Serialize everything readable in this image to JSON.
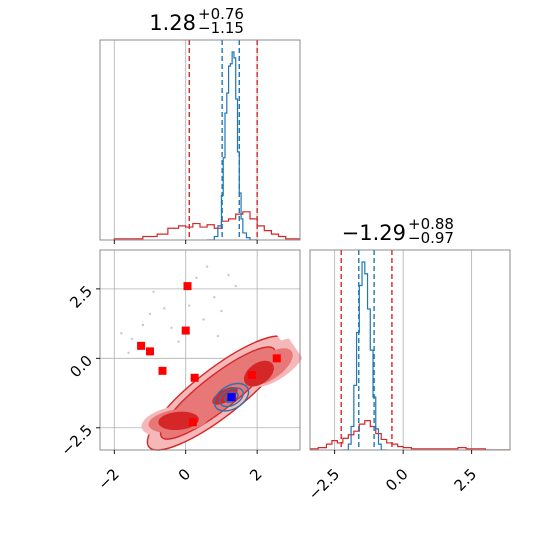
{
  "chart_data": {
    "type": "corner",
    "colors": {
      "broad": "#d62728",
      "narrow": "#1f77b4",
      "truth": "#0000ff",
      "samples": "#ff0000"
    },
    "param1": {
      "title": {
        "main": "1.28",
        "sup": "+0.76",
        "sub": "−1.15"
      },
      "xlim": [
        -2.4,
        3.2
      ],
      "ticks": [
        -2,
        0,
        2
      ],
      "tick_labels": [
        "−2",
        "0",
        "2"
      ],
      "broad_quantiles": [
        0.1,
        2.0
      ],
      "narrow_quantiles": [
        1.02,
        1.5
      ],
      "broad_hist": {
        "edges": [
          -2.0,
          -1.6,
          -1.2,
          -0.8,
          -0.5,
          -0.2,
          0.0,
          0.2,
          0.4,
          0.6,
          0.8,
          1.0,
          1.2,
          1.4,
          1.6,
          1.8,
          2.0,
          2.2,
          2.4,
          2.6,
          2.8,
          3.2
        ],
        "values": [
          1,
          1,
          3,
          5,
          10,
          12,
          11,
          14,
          11,
          13,
          10,
          16,
          18,
          22,
          24,
          18,
          12,
          8,
          5,
          3,
          1
        ]
      },
      "narrow_hist": {
        "edges": [
          0.6,
          0.8,
          0.9,
          1.0,
          1.05,
          1.1,
          1.15,
          1.2,
          1.25,
          1.3,
          1.35,
          1.4,
          1.45,
          1.5,
          1.55,
          1.6,
          1.7,
          1.8,
          2.0
        ],
        "values": [
          0,
          3,
          12,
          38,
          70,
          108,
          125,
          148,
          150,
          160,
          155,
          120,
          75,
          40,
          18,
          6,
          2,
          0
        ]
      }
    },
    "param2": {
      "title": {
        "main": "−1.29",
        "sup": "+0.88",
        "sub": "−0.97"
      },
      "xlim": [
        -3.4,
        3.9
      ],
      "ticks": [
        -2.5,
        0.0,
        2.5
      ],
      "tick_labels": [
        "−2.5",
        "0.0",
        "2.5"
      ],
      "broad_quantiles": [
        -2.26,
        -0.41
      ],
      "narrow_quantiles": [
        -1.62,
        -1.06
      ],
      "broad_hist": {
        "edges": [
          -3.4,
          -3.1,
          -2.8,
          -2.6,
          -2.4,
          -2.2,
          -2.0,
          -1.8,
          -1.6,
          -1.4,
          -1.2,
          -1.0,
          -0.8,
          -0.6,
          -0.4,
          -0.2,
          0.0,
          0.3,
          0.6,
          1.0,
          1.5,
          2.0,
          2.3,
          2.6,
          3.0,
          3.9
        ],
        "values": [
          1,
          2,
          5,
          8,
          6,
          10,
          13,
          16,
          22,
          25,
          20,
          14,
          9,
          6,
          5,
          3,
          2,
          1,
          1,
          1,
          1,
          2,
          1,
          1,
          0
        ]
      },
      "narrow_hist": {
        "edges": [
          -2.2,
          -2.0,
          -1.9,
          -1.8,
          -1.7,
          -1.6,
          -1.5,
          -1.4,
          -1.3,
          -1.2,
          -1.1,
          -1.0,
          -0.9,
          -0.8,
          -0.6
        ],
        "values": [
          0,
          5,
          20,
          55,
          100,
          140,
          160,
          150,
          120,
          85,
          45,
          18,
          5,
          0
        ]
      }
    },
    "joint": {
      "ylim": [
        -3.3,
        3.9
      ],
      "yticks": [
        -2.5,
        0.0,
        2.5
      ],
      "ytick_labels": [
        "−2.5",
        "0.0",
        "2.5"
      ],
      "truth": [
        1.28,
        -1.4
      ],
      "samples": [
        [
          -1.25,
          0.45
        ],
        [
          -1.0,
          0.25
        ],
        [
          -0.65,
          -0.45
        ],
        [
          0.05,
          2.6
        ],
        [
          0.0,
          1.0
        ],
        [
          0.25,
          -0.7
        ],
        [
          0.2,
          -2.3
        ],
        [
          1.3,
          -1.4
        ],
        [
          1.85,
          -0.6
        ],
        [
          2.55,
          0.0
        ]
      ],
      "scatter_points": [
        [
          -1.8,
          0.9
        ],
        [
          -1.5,
          0.7
        ],
        [
          -1.2,
          1.2
        ],
        [
          -0.9,
          2.4
        ],
        [
          -0.6,
          1.8
        ],
        [
          -0.4,
          1.1
        ],
        [
          0.3,
          2.9
        ],
        [
          0.6,
          3.3
        ],
        [
          0.8,
          2.2
        ],
        [
          0.5,
          1.4
        ],
        [
          -0.2,
          0.6
        ],
        [
          1.0,
          1.7
        ],
        [
          1.4,
          2.6
        ],
        [
          -1.0,
          1.6
        ],
        [
          0.9,
          0.8
        ],
        [
          -1.6,
          0.2
        ],
        [
          1.2,
          3.0
        ],
        [
          0.1,
          1.9
        ]
      ]
    }
  }
}
